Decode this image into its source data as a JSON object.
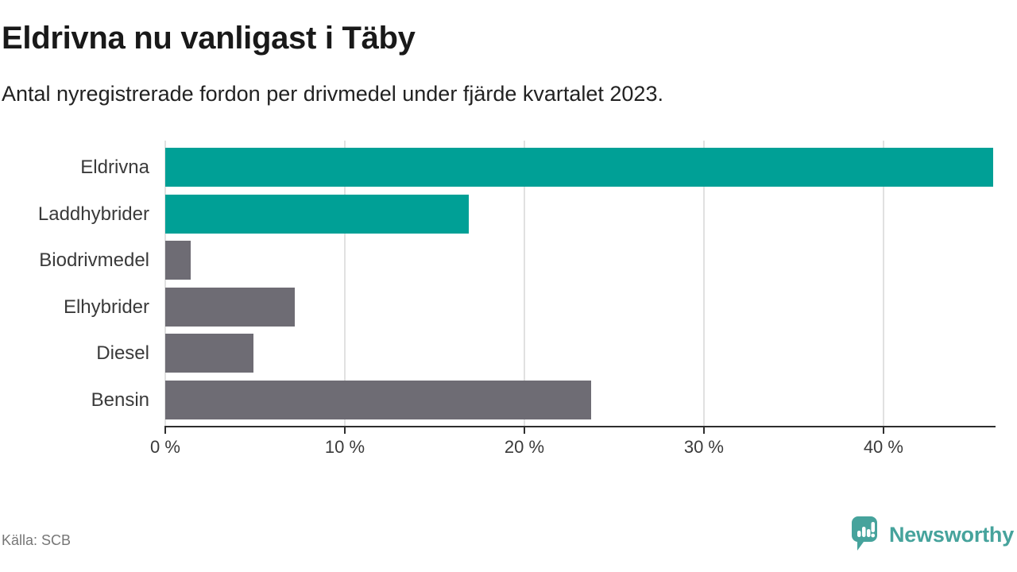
{
  "title": "Eldrivna nu vanligast i Täby",
  "subtitle": "Antal nyregistrerade fordon per drivmedel under fjärde kvartalet 2023.",
  "source": "Källa: SCB",
  "brand": {
    "name": "Newsworthy",
    "icon": "newsworthy-speech-bubble-bar-chart-icon",
    "color": "#46a39c"
  },
  "colors": {
    "electric_bar": "#00a096",
    "other_bar": "#6e6c74",
    "gridline": "#e1e1e1",
    "axis": "#2e2e2e",
    "title_text": "#191919",
    "label_text": "#3a3a3a",
    "source_text": "#767676"
  },
  "chart_data": {
    "type": "bar",
    "orientation": "horizontal",
    "title": "Eldrivna nu vanligast i Täby",
    "subtitle": "Antal nyregistrerade fordon per drivmedel under fjärde kvartalet 2023.",
    "categories": [
      "Eldrivna",
      "Laddhybrider",
      "Biodrivmedel",
      "Elhybrider",
      "Diesel",
      "Bensin"
    ],
    "values": [
      46.1,
      16.9,
      1.4,
      7.2,
      4.9,
      23.7
    ],
    "unit": "%",
    "bar_colors": [
      "#00a096",
      "#00a096",
      "#6e6c74",
      "#6e6c74",
      "#6e6c74",
      "#6e6c74"
    ],
    "xlabel": "",
    "ylabel": "",
    "xlim": [
      0,
      46.2
    ],
    "x_ticks": [
      0,
      10,
      20,
      30,
      40
    ],
    "x_tick_labels": [
      "0 %",
      "10 %",
      "20 %",
      "30 %",
      "40 %"
    ],
    "grid": true,
    "legend": false
  }
}
